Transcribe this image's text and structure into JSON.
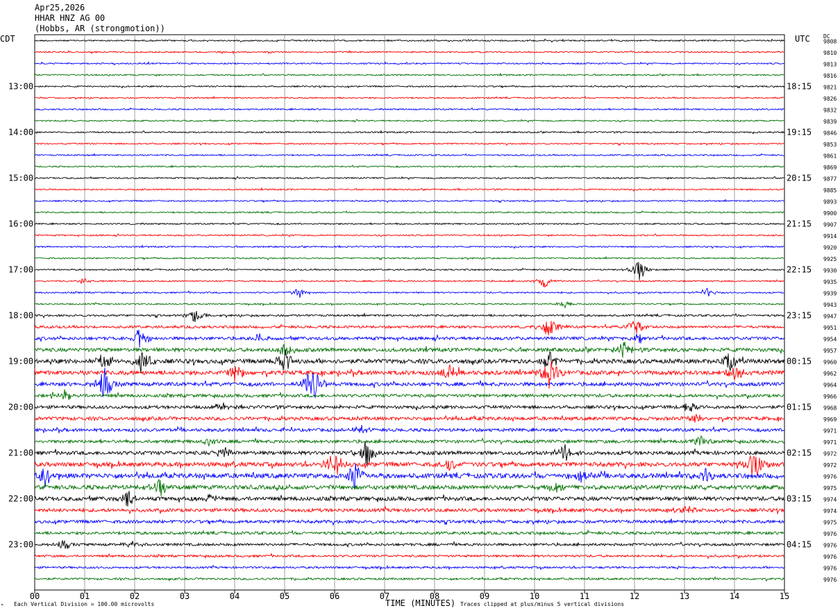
{
  "header": {
    "date": "Apr25,2026",
    "station": "HHAR HNZ AG 00",
    "location": "(Hobbs, AR (strongmotion))"
  },
  "timezones": {
    "left": "CDT",
    "right": "UTC",
    "dc": "DC"
  },
  "footer": {
    "scale": "Each Vertical Division =  100.00 microvolts",
    "xlabel": "TIME (MINUTES)",
    "clip": "Traces clipped at plus/minus 5 vertical divisions",
    "mark": "ᴹ"
  },
  "colors": [
    "#000000",
    "#ff0000",
    "#0000ff",
    "#007000"
  ],
  "chart_data": {
    "type": "helicorder",
    "x": {
      "label": "TIME (MINUTES)",
      "min": 0,
      "max": 15,
      "ticks": [
        "00",
        "01",
        "02",
        "03",
        "04",
        "05",
        "06",
        "07",
        "08",
        "09",
        "10",
        "11",
        "12",
        "13",
        "14",
        "15"
      ]
    },
    "trace_minutes": 15,
    "trace_count": 48,
    "left_hour_labels": [
      {
        "row": 4,
        "label": "13:00"
      },
      {
        "row": 8,
        "label": "14:00"
      },
      {
        "row": 12,
        "label": "15:00"
      },
      {
        "row": 16,
        "label": "16:00"
      },
      {
        "row": 20,
        "label": "17:00"
      },
      {
        "row": 24,
        "label": "18:00"
      },
      {
        "row": 28,
        "label": "19:00"
      },
      {
        "row": 32,
        "label": "20:00"
      },
      {
        "row": 36,
        "label": "21:00"
      },
      {
        "row": 40,
        "label": "22:00"
      },
      {
        "row": 44,
        "label": "23:00"
      }
    ],
    "right_hour_labels": [
      {
        "row": 4,
        "label": "18:15"
      },
      {
        "row": 8,
        "label": "19:15"
      },
      {
        "row": 12,
        "label": "20:15"
      },
      {
        "row": 16,
        "label": "21:15"
      },
      {
        "row": 20,
        "label": "22:15"
      },
      {
        "row": 24,
        "label": "23:15"
      },
      {
        "row": 28,
        "label": "00:15"
      },
      {
        "row": 32,
        "label": "01:15"
      },
      {
        "row": 36,
        "label": "02:15"
      },
      {
        "row": 40,
        "label": "03:15"
      },
      {
        "row": 44,
        "label": "04:15"
      }
    ],
    "dc_offsets": [
      "9808",
      "9810",
      "9813",
      "9816",
      "9821",
      "9826",
      "9832",
      "9839",
      "9846",
      "9853",
      "9861",
      "9869",
      "9877",
      "9885",
      "9893",
      "9900",
      "9907",
      "9914",
      "9920",
      "9925",
      "9930",
      "9935",
      "9939",
      "9943",
      "9947",
      "9951",
      "9954",
      "9957",
      "9960",
      "9962",
      "9964",
      "9966",
      "9968",
      "9969",
      "9971",
      "9971",
      "9972",
      "9972",
      "9976",
      "9975",
      "9974",
      "9974",
      "9975",
      "9976",
      "9976",
      "9976",
      "9976",
      "9976"
    ],
    "trace_noise_level": [
      1,
      1,
      1,
      1,
      1,
      1,
      1,
      1,
      1,
      1,
      1,
      1,
      1,
      1,
      1,
      1,
      1,
      1,
      1,
      1,
      1,
      1,
      1,
      1,
      1.4,
      1.8,
      2.2,
      2.6,
      3,
      3,
      2.6,
      2.2,
      2.2,
      2.4,
      2.2,
      2.2,
      2.6,
      3,
      3.4,
      3,
      2.8,
      2.4,
      2.2,
      2,
      1.8,
      1.6,
      1.4,
      1.4
    ],
    "events": [
      {
        "row": 21,
        "minute": 0.95,
        "amp": 6
      },
      {
        "row": 21,
        "minute": 10.2,
        "amp": 10
      },
      {
        "row": 20,
        "minute": 12.1,
        "amp": 18
      },
      {
        "row": 22,
        "minute": 5.3,
        "amp": 8
      },
      {
        "row": 22,
        "minute": 13.45,
        "amp": 8
      },
      {
        "row": 23,
        "minute": 10.6,
        "amp": 6
      },
      {
        "row": 24,
        "minute": 3.2,
        "amp": 12
      },
      {
        "row": 25,
        "minute": 12.0,
        "amp": 14
      },
      {
        "row": 25,
        "minute": 10.3,
        "amp": 20
      },
      {
        "row": 26,
        "minute": 4.5,
        "amp": 8
      },
      {
        "row": 26,
        "minute": 2.1,
        "amp": 18
      },
      {
        "row": 26,
        "minute": 12.1,
        "amp": 10
      },
      {
        "row": 27,
        "minute": 11.8,
        "amp": 14
      },
      {
        "row": 27,
        "minute": 5.0,
        "amp": 14
      },
      {
        "row": 28,
        "minute": 2.15,
        "amp": 22
      },
      {
        "row": 28,
        "minute": 5.0,
        "amp": 22
      },
      {
        "row": 28,
        "minute": 1.4,
        "amp": 12
      },
      {
        "row": 28,
        "minute": 13.9,
        "amp": 22
      },
      {
        "row": 28,
        "minute": 10.3,
        "amp": 16
      },
      {
        "row": 29,
        "minute": 4.0,
        "amp": 16
      },
      {
        "row": 29,
        "minute": 10.3,
        "amp": 26
      },
      {
        "row": 29,
        "minute": 14.0,
        "amp": 12
      },
      {
        "row": 29,
        "minute": 8.3,
        "amp": 12
      },
      {
        "row": 30,
        "minute": 1.4,
        "amp": 26
      },
      {
        "row": 30,
        "minute": 5.6,
        "amp": 26
      },
      {
        "row": 30,
        "minute": 5.45,
        "amp": 20
      },
      {
        "row": 31,
        "minute": 0.6,
        "amp": 10
      },
      {
        "row": 32,
        "minute": 3.75,
        "amp": 8
      },
      {
        "row": 32,
        "minute": 13.1,
        "amp": 10
      },
      {
        "row": 33,
        "minute": 13.2,
        "amp": 10
      },
      {
        "row": 34,
        "minute": 6.5,
        "amp": 8
      },
      {
        "row": 35,
        "minute": 3.5,
        "amp": 8
      },
      {
        "row": 35,
        "minute": 13.3,
        "amp": 10
      },
      {
        "row": 36,
        "minute": 6.65,
        "amp": 24
      },
      {
        "row": 36,
        "minute": 10.6,
        "amp": 14
      },
      {
        "row": 36,
        "minute": 3.8,
        "amp": 10
      },
      {
        "row": 37,
        "minute": 6.0,
        "amp": 26
      },
      {
        "row": 37,
        "minute": 14.4,
        "amp": 26
      },
      {
        "row": 37,
        "minute": 8.3,
        "amp": 12
      },
      {
        "row": 38,
        "minute": 6.4,
        "amp": 24
      },
      {
        "row": 38,
        "minute": 0.2,
        "amp": 18
      },
      {
        "row": 38,
        "minute": 13.4,
        "amp": 12
      },
      {
        "row": 38,
        "minute": 10.9,
        "amp": 12
      },
      {
        "row": 39,
        "minute": 2.5,
        "amp": 16
      },
      {
        "row": 39,
        "minute": 10.4,
        "amp": 10
      },
      {
        "row": 40,
        "minute": 1.9,
        "amp": 14
      },
      {
        "row": 40,
        "minute": 3.5,
        "amp": 8
      },
      {
        "row": 41,
        "minute": 13.1,
        "amp": 8
      },
      {
        "row": 44,
        "minute": 0.6,
        "amp": 8
      },
      {
        "row": 44,
        "minute": 2.0,
        "amp": 8
      }
    ]
  }
}
